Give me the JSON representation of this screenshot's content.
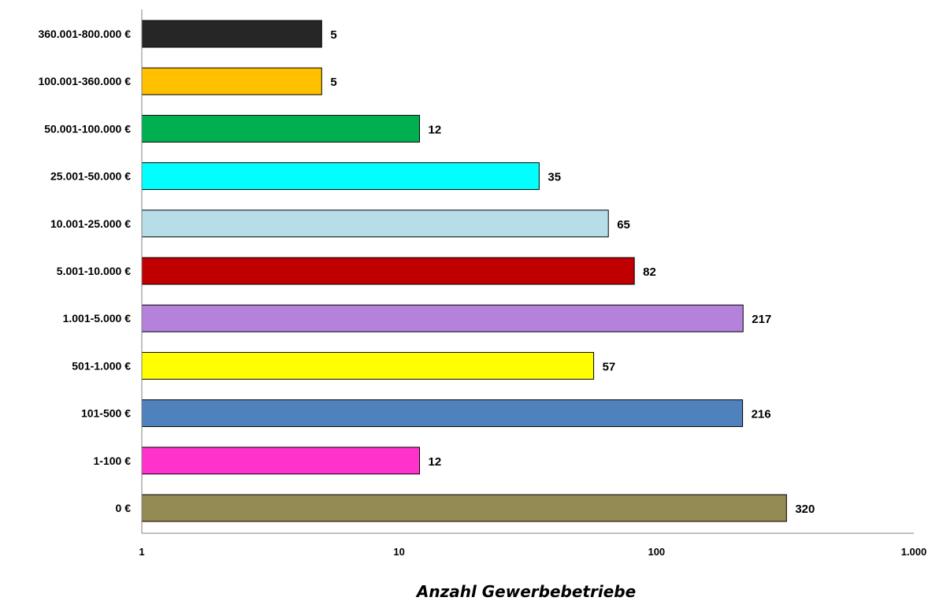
{
  "chart_data": {
    "type": "bar",
    "orientation": "horizontal",
    "categories": [
      "360.001-800.000 €",
      "100.001-360.000 €",
      "50.001-100.000 €",
      "25.001-50.000 €",
      "10.001-25.000 €",
      "5.001-10.000 €",
      "1.001-5.000 €",
      "501-1.000 €",
      "101-500 €",
      "1-100 €",
      "0 €"
    ],
    "values": [
      5,
      5,
      12,
      35,
      65,
      82,
      217,
      57,
      216,
      12,
      320
    ],
    "value_labels": [
      "5",
      "5",
      "12",
      "35",
      "65",
      "82",
      "217",
      "57",
      "216",
      "12",
      "320"
    ],
    "colors": [
      "#262626",
      "#FFC000",
      "#00B050",
      "#00FFFF",
      "#B7DEE8",
      "#C00000",
      "#B482DA",
      "#FFFF00",
      "#4F81BD",
      "#FF33CC",
      "#948A54"
    ],
    "xscale": "log",
    "xlim": [
      1,
      1000
    ],
    "xticks": [
      1,
      10,
      100,
      1000
    ],
    "xtick_labels": [
      "1",
      "10",
      "100",
      "1.000"
    ],
    "xlabel": "Anzahl Gewerbebetriebe",
    "ylabel": "",
    "title": "",
    "grid": false,
    "legend": "none"
  }
}
